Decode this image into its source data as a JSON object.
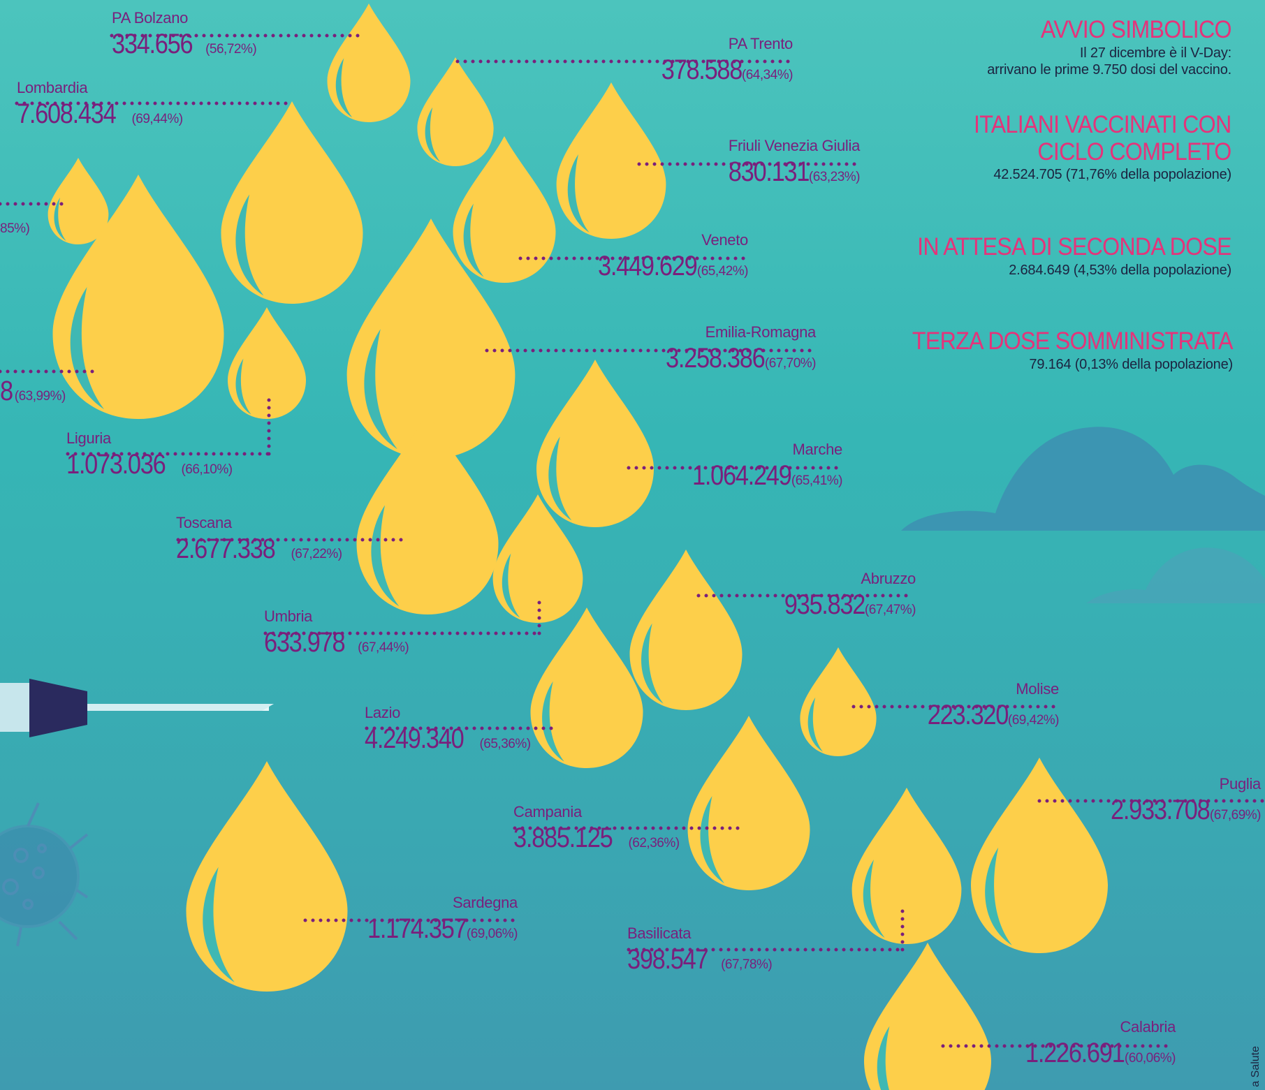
{
  "colors": {
    "drop": "#fdcf4a",
    "dots": "#7a1f7c",
    "heading": "#e5337a",
    "text": "#1c2340"
  },
  "info": {
    "avvio": {
      "heading": "AVVIO SIMBOLICO",
      "line1": "Il 27 dicembre è il V-Day:",
      "line2": "arrivano le prime 9.750 dosi del vaccino."
    },
    "vaccinati": {
      "heading1": "ITALIANI VACCINATI CON",
      "heading2": "CICLO COMPLETO",
      "value": "42.524.705 (71,76% della popolazione)"
    },
    "attesa": {
      "heading": "IN ATTESA DI SECONDA DOSE",
      "value": "2.684.649 (4,53% della popolazione)"
    },
    "terza": {
      "heading": "TERZA DOSE SOMMINISTRATA",
      "value": "79.164 (0,13% della popolazione)"
    }
  },
  "regions": {
    "bolzano": {
      "name": "PA Bolzano",
      "value": "334.656",
      "pct": "(56,72%)"
    },
    "trento": {
      "name": "PA Trento",
      "value": "378.588",
      "pct": "(64,34%)"
    },
    "lombardia": {
      "name": "Lombardia",
      "value": "7.608.434",
      "pct": "(69,44%)"
    },
    "friuli": {
      "name": "Friuli Venezia Giulia",
      "value": "830.131",
      "pct": "(63,23%)"
    },
    "valdaosta": {
      "pct": "85%)"
    },
    "veneto": {
      "name": "Veneto",
      "value": "3.449.629",
      "pct": "(65,42%)"
    },
    "piemonte": {
      "value": "8",
      "pct": "(63,99%)"
    },
    "emilia": {
      "name": "Emilia-Romagna",
      "value": "3.258.386",
      "pct": "(67,70%)"
    },
    "liguria": {
      "name": "Liguria",
      "value": "1.073.036",
      "pct": "(66,10%)"
    },
    "marche": {
      "name": "Marche",
      "value": "1.064.249",
      "pct": "(65,41%)"
    },
    "toscana": {
      "name": "Toscana",
      "value": "2.677.338",
      "pct": "(67,22%)"
    },
    "abruzzo": {
      "name": "Abruzzo",
      "value": "935.832",
      "pct": "(67,47%)"
    },
    "umbria": {
      "name": "Umbria",
      "value": "633.978",
      "pct": "(67,44%)"
    },
    "molise": {
      "name": "Molise",
      "value": "223.320",
      "pct": "(69,42%)"
    },
    "lazio": {
      "name": "Lazio",
      "value": "4.249.340",
      "pct": "(65,36%)"
    },
    "puglia": {
      "name": "Puglia",
      "value": "2.933.708",
      "pct": "(67,69%)"
    },
    "campania": {
      "name": "Campania",
      "value": "3.885.125",
      "pct": "(62,36%)"
    },
    "sardegna": {
      "name": "Sardegna",
      "value": "1.174.357",
      "pct": "(69,06%)"
    },
    "basilicata": {
      "name": "Basilicata",
      "value": "398.547",
      "pct": "(67,78%)"
    },
    "calabria": {
      "name": "Calabria",
      "value": "1.226.691",
      "pct": "(60,06%)"
    }
  },
  "credit": "a Salute"
}
